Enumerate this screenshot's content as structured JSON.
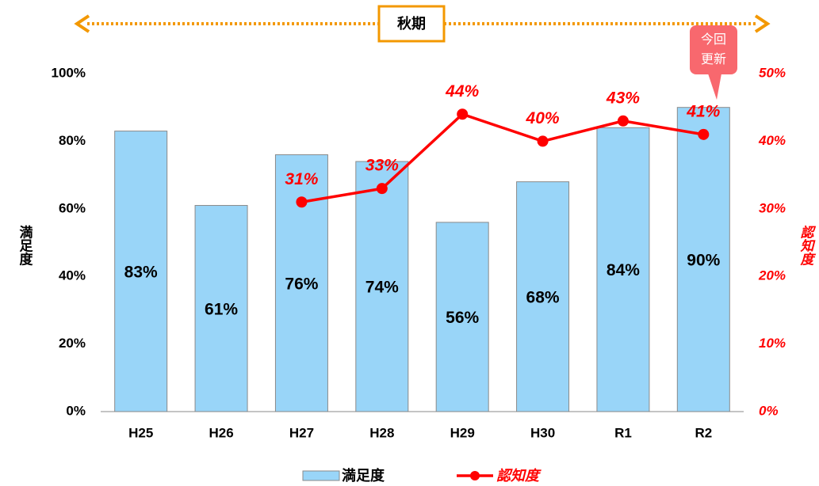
{
  "chart_data": {
    "type": "bar",
    "period_label": "秋期",
    "callout": [
      "今回",
      "更新"
    ],
    "ylabel": "満足度",
    "y2label": "認知度",
    "categories": [
      "H25",
      "H26",
      "H27",
      "H28",
      "H29",
      "H30",
      "R1",
      "R2"
    ],
    "series": [
      {
        "name": "満足度",
        "type": "bar",
        "color": "#99d5f8",
        "values": [
          83,
          61,
          76,
          74,
          56,
          68,
          84,
          90
        ],
        "value_labels": [
          "83%",
          "61%",
          "76%",
          "74%",
          "56%",
          "68%",
          "84%",
          "90%"
        ]
      },
      {
        "name": "認知度",
        "type": "line",
        "axis": "y2",
        "color": "#ff0000",
        "values": [
          null,
          null,
          31,
          33,
          44,
          40,
          43,
          41
        ],
        "value_labels": [
          null,
          null,
          "31%",
          "33%",
          "44%",
          "40%",
          "43%",
          "41%"
        ]
      }
    ],
    "ylim": [
      0,
      100
    ],
    "yticks": [
      {
        "value": 0,
        "label": "0%"
      },
      {
        "value": 20,
        "label": "20%"
      },
      {
        "value": 40,
        "label": "40%"
      },
      {
        "value": 60,
        "label": "60%"
      },
      {
        "value": 80,
        "label": "80%"
      },
      {
        "value": 100,
        "label": "100%"
      }
    ],
    "y2lim": [
      0,
      50
    ],
    "y2ticks": [
      {
        "value": 0,
        "label": "0%"
      },
      {
        "value": 10,
        "label": "10%"
      },
      {
        "value": 20,
        "label": "20%"
      },
      {
        "value": 30,
        "label": "30%"
      },
      {
        "value": 40,
        "label": "40%"
      },
      {
        "value": 50,
        "label": "50%"
      }
    ],
    "grid": false
  }
}
